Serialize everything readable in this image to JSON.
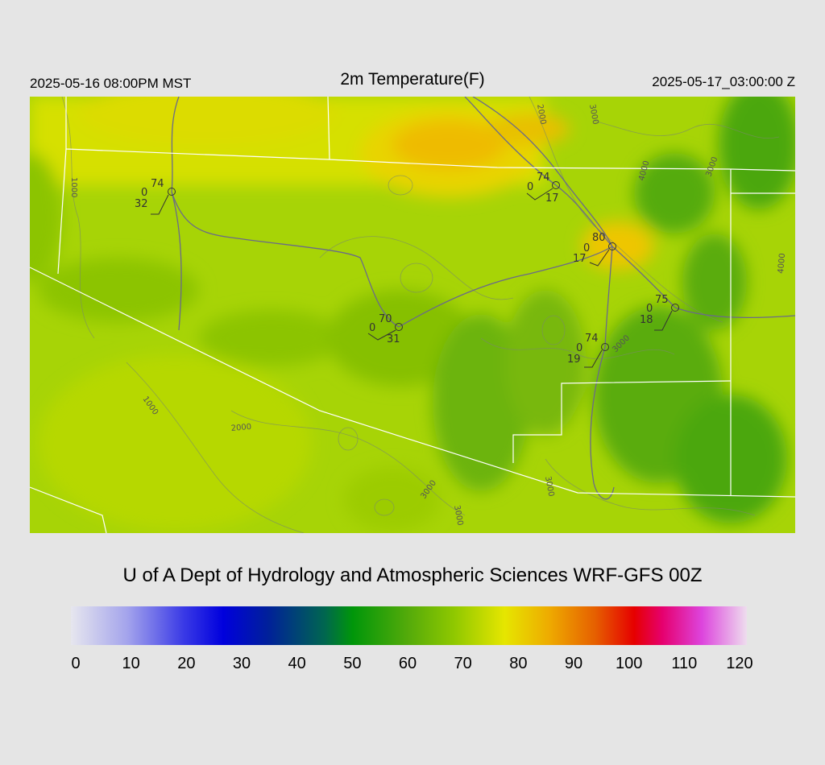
{
  "header": {
    "local_time": "2025-05-16 08:00PM MST",
    "title": "2m Temperature(F)",
    "utc_time": "2025-05-17_03:00:00 Z"
  },
  "credit": "U of A Dept of Hydrology and Atmospheric Sciences WRF-GFS 00Z",
  "colorbar": {
    "ticks": [
      "0",
      "10",
      "20",
      "30",
      "40",
      "50",
      "60",
      "70",
      "80",
      "90",
      "100",
      "110",
      "120"
    ],
    "stops": [
      {
        "value": 0,
        "color": "#e6e6ee"
      },
      {
        "value": 10,
        "color": "#a4a4ec"
      },
      {
        "value": 20,
        "color": "#3a3ae6"
      },
      {
        "value": 27,
        "color": "#0000dd"
      },
      {
        "value": 35,
        "color": "#00209a"
      },
      {
        "value": 45,
        "color": "#006650"
      },
      {
        "value": 50,
        "color": "#00960a"
      },
      {
        "value": 60,
        "color": "#55ab0a"
      },
      {
        "value": 68,
        "color": "#8fc800"
      },
      {
        "value": 77,
        "color": "#e6e600"
      },
      {
        "value": 85,
        "color": "#eeaa00"
      },
      {
        "value": 93,
        "color": "#e66000"
      },
      {
        "value": 100,
        "color": "#e60000"
      },
      {
        "value": 105,
        "color": "#e6006e"
      },
      {
        "value": 112,
        "color": "#dd44dd"
      },
      {
        "value": 120,
        "color": "#eeddee"
      }
    ]
  },
  "stations": [
    {
      "temp": "74",
      "wind": "0",
      "dew": "32"
    },
    {
      "temp": "74",
      "wind": "0",
      "dew": "17"
    },
    {
      "temp": "80",
      "wind": "0",
      "dew": "17"
    },
    {
      "temp": "75",
      "wind": "0",
      "dew": "18"
    },
    {
      "temp": "70",
      "wind": "0",
      "dew": "31"
    },
    {
      "temp": "74",
      "wind": "0",
      "dew": "19"
    }
  ],
  "contour_labels": [
    "1000",
    "2000",
    "3000",
    "4000",
    "1000",
    "2000",
    "3000",
    "3000",
    "3000",
    "3000",
    "3000",
    "4000"
  ]
}
